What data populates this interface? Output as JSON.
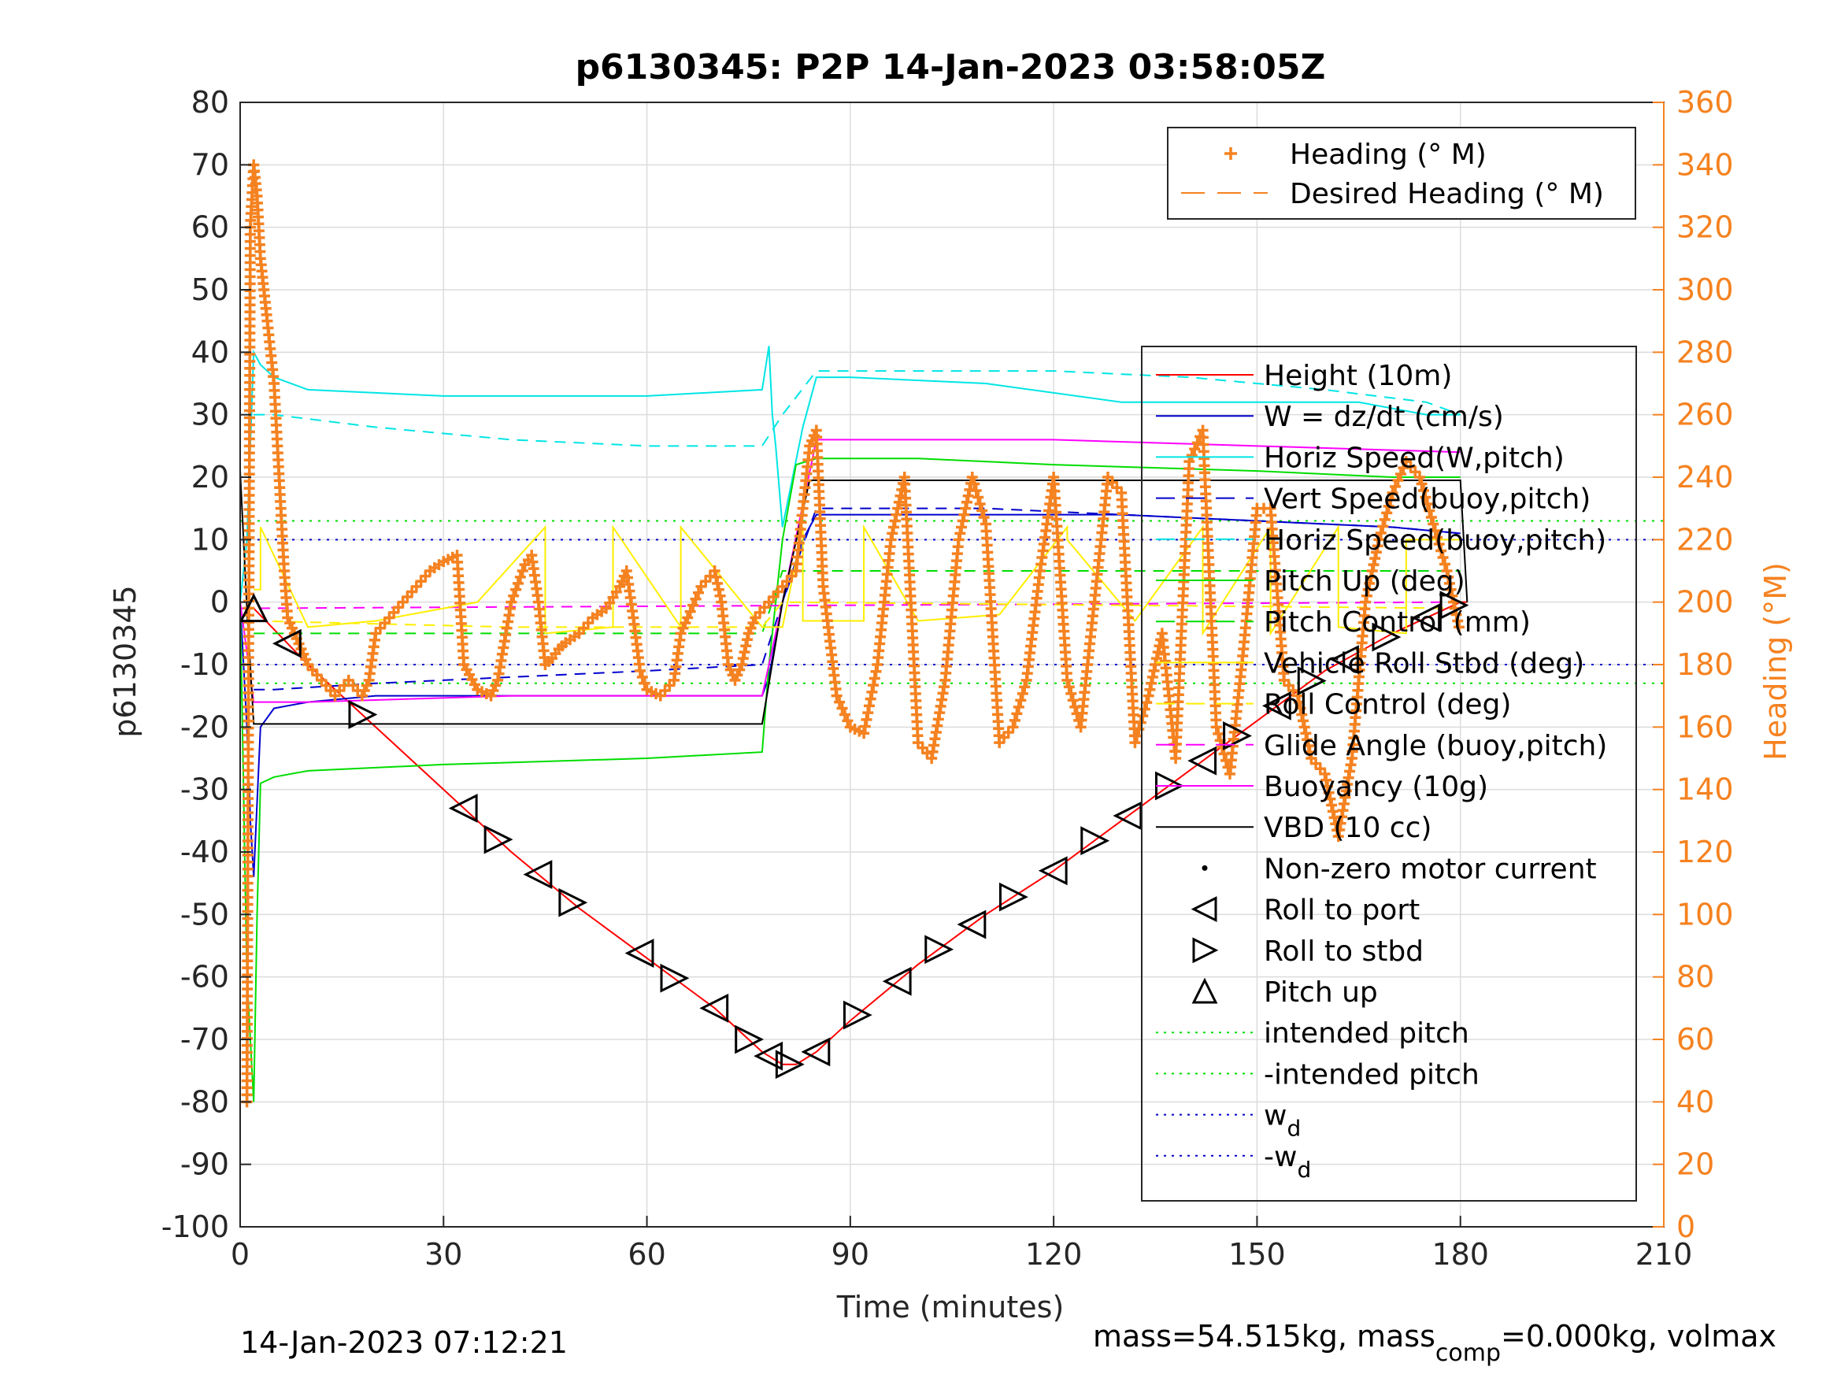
{
  "chart_data": {
    "type": "line",
    "title": "p6130345: P2P 14-Jan-2023 03:58:05Z",
    "xlabel": "Time (minutes)",
    "ylabel": "p6130345",
    "y2label": "Heading (°M)",
    "xlim": [
      0,
      210
    ],
    "ylim": [
      -100,
      80
    ],
    "y2lim": [
      0,
      360
    ],
    "xticks": [
      0,
      30,
      60,
      90,
      120,
      150,
      180,
      210
    ],
    "yticks": [
      -100,
      -90,
      -80,
      -70,
      -60,
      -50,
      -40,
      -30,
      -20,
      -10,
      0,
      10,
      20,
      30,
      40,
      50,
      60,
      70,
      80
    ],
    "y2ticks": [
      0,
      20,
      40,
      60,
      80,
      100,
      120,
      140,
      160,
      180,
      200,
      220,
      240,
      260,
      280,
      300,
      320,
      340,
      360
    ],
    "grid": true,
    "footer_left": "14-Jan-2023 07:12:21",
    "footer_right_main": "mass=54.515kg, mass",
    "footer_right_sub": "comp",
    "footer_right_tail": "=0.000kg, volmax",
    "legend_top": [
      {
        "label": "Heading (° M)",
        "color": "#f58220",
        "marker": "+"
      },
      {
        "label": "Desired Heading (° M)",
        "color": "#f58220",
        "style": "dashed"
      }
    ],
    "legend_main": [
      {
        "label": "Height (10m)",
        "color": "#ff0000",
        "style": "solid"
      },
      {
        "label": "W = dz/dt (cm/s)",
        "color": "#0000cc",
        "style": "solid"
      },
      {
        "label": "Horiz Speed(W,pitch)",
        "color": "#00e5e5",
        "style": "solid"
      },
      {
        "label": "Vert Speed(buoy,pitch)",
        "color": "#0000cc",
        "style": "dashed"
      },
      {
        "label": "Horiz Speed(buoy,pitch)",
        "color": "#00e5e5",
        "style": "dashed"
      },
      {
        "label": "Pitch Up (deg)",
        "color": "#00dd00",
        "style": "solid"
      },
      {
        "label": "Pitch Control (mm)",
        "color": "#00dd00",
        "style": "dashed"
      },
      {
        "label": "Vehicle Roll Stbd (deg)",
        "color": "#ffee00",
        "style": "solid"
      },
      {
        "label": "Roll Control (deg)",
        "color": "#ffee00",
        "style": "dashed"
      },
      {
        "label": "Glide Angle (buoy,pitch)",
        "color": "#ff00ff",
        "style": "dashed"
      },
      {
        "label": "Buoyancy (10g)",
        "color": "#ff00ff",
        "style": "solid"
      },
      {
        "label": "VBD (10 cc)",
        "color": "#000000",
        "style": "solid"
      },
      {
        "label": "Non-zero motor current",
        "color": "#000000",
        "marker": "dot"
      },
      {
        "label": "Roll to port",
        "color": "#000000",
        "marker": "tri-left"
      },
      {
        "label": "Roll to stbd",
        "color": "#000000",
        "marker": "tri-right"
      },
      {
        "label": "Pitch up",
        "color": "#000000",
        "marker": "tri-up"
      },
      {
        "label": "intended pitch",
        "color": "#00dd00",
        "style": "dotted"
      },
      {
        "label": "-intended pitch",
        "color": "#00dd00",
        "style": "dotted"
      },
      {
        "label": "w",
        "sub": "d",
        "color": "#0000cc",
        "style": "dotted"
      },
      {
        "label": "-w",
        "sub": "d",
        "color": "#0000cc",
        "style": "dotted"
      }
    ],
    "series": [
      {
        "name": "Height (10m)",
        "color": "#ff0000",
        "x": [
          0,
          2,
          10,
          20,
          30,
          40,
          50,
          60,
          70,
          77,
          80,
          82,
          85,
          90,
          100,
          110,
          120,
          130,
          140,
          150,
          160,
          170,
          180,
          181
        ],
        "y": [
          -1,
          -1,
          -10,
          -20,
          -30,
          -40,
          -49,
          -57,
          -65,
          -72,
          -74,
          -74,
          -72,
          -67,
          -58,
          -50,
          -43,
          -35,
          -27,
          -19,
          -11,
          -5,
          0,
          0
        ]
      },
      {
        "name": "W = dz/dt (cm/s)",
        "color": "#0000cc",
        "x": [
          0,
          1,
          1.5,
          2,
          3,
          5,
          10,
          20,
          40,
          60,
          77,
          78,
          80,
          83,
          85,
          90,
          110,
          130,
          150,
          170,
          180
        ],
        "y": [
          0,
          -20,
          -35,
          -44,
          -20,
          -17,
          -16,
          -15,
          -15,
          -15,
          -15,
          -12,
          0,
          10,
          14,
          14,
          14,
          14,
          13,
          12,
          11
        ]
      },
      {
        "name": "Horiz Speed(W,pitch)",
        "color": "#00e5e5",
        "x": [
          0,
          1,
          2,
          3,
          5,
          10,
          30,
          60,
          77,
          78,
          78.5,
          79,
          80,
          83,
          85,
          90,
          110,
          130,
          150,
          165,
          175,
          180
        ],
        "y": [
          0,
          10,
          40,
          38,
          36,
          34,
          33,
          33,
          34,
          41,
          30,
          25,
          12,
          28,
          36,
          36,
          35,
          32,
          32,
          32,
          30,
          30
        ]
      },
      {
        "name": "Vert Speed(buoy,pitch)",
        "color": "#0000cc",
        "dash": "14 10",
        "x": [
          2,
          5,
          20,
          40,
          60,
          77,
          80,
          85,
          110,
          130,
          150,
          170,
          180
        ],
        "y": [
          -14,
          -14,
          -13,
          -12,
          -11,
          -10,
          0,
          15,
          15,
          14,
          13,
          12,
          11
        ]
      },
      {
        "name": "Horiz Speed(buoy,pitch)",
        "color": "#00e5e5",
        "dash": "14 10",
        "x": [
          2,
          5,
          20,
          40,
          60,
          77,
          80,
          85,
          100,
          120,
          140,
          160,
          175,
          180
        ],
        "y": [
          30,
          30,
          28,
          26,
          25,
          25,
          30,
          37,
          37,
          37,
          36,
          34,
          32,
          30
        ]
      },
      {
        "name": "Pitch Up (deg)",
        "color": "#00dd00",
        "x": [
          0,
          1,
          2,
          2.5,
          3,
          5,
          10,
          30,
          60,
          77,
          78,
          80,
          82,
          85,
          100,
          120,
          150,
          170,
          180
        ],
        "y": [
          0,
          -60,
          -80,
          -50,
          -29,
          -28,
          -27,
          -26,
          -25,
          -24,
          -10,
          10,
          22,
          23,
          23,
          22,
          21,
          20,
          20
        ]
      },
      {
        "name": "Pitch Control (mm)",
        "color": "#00dd00",
        "dash": "14 10",
        "x": [
          2,
          40,
          77,
          80,
          180
        ],
        "y": [
          -5,
          -5,
          -5,
          5,
          5
        ]
      },
      {
        "name": "Buoyancy (10g)",
        "color": "#ff00ff",
        "x": [
          0,
          2,
          10,
          40,
          77,
          80,
          85,
          120,
          150,
          180
        ],
        "y": [
          0,
          -16,
          -16,
          -15,
          -15,
          0,
          26,
          26,
          25,
          24
        ]
      },
      {
        "name": "Glide Angle (buoy,pitch)",
        "color": "#ff00ff",
        "dash": "14 10",
        "x": [
          0,
          180
        ],
        "y": [
          -1,
          0
        ]
      },
      {
        "name": "VBD (10 cc)",
        "color": "#000000",
        "x": [
          0,
          1,
          2,
          77,
          80,
          84,
          85,
          180,
          181
        ],
        "y": [
          21,
          -1,
          -19.5,
          -19.5,
          0,
          19.5,
          19.5,
          19.5,
          0
        ]
      },
      {
        "name": "Vehicle Roll Stbd (deg)",
        "color": "#ffee00",
        "x": [
          2,
          3,
          3,
          10,
          10,
          20,
          20,
          35,
          35,
          45,
          45,
          55,
          55,
          65,
          65,
          77,
          80,
          83,
          83,
          92,
          92,
          100,
          100,
          112,
          112,
          122,
          122,
          132,
          132,
          142,
          142,
          152,
          152,
          162,
          162,
          172,
          172,
          180
        ],
        "y": [
          2,
          2,
          12,
          -4,
          -4,
          -3,
          -3,
          0,
          0,
          12,
          -5,
          -4,
          12,
          -4,
          12,
          -4,
          -4,
          12,
          -3,
          -3,
          12,
          -3,
          -3,
          -2,
          -2,
          12,
          10,
          -3,
          -3,
          12,
          -5,
          12,
          -5,
          12,
          -4,
          -5,
          10,
          10
        ]
      },
      {
        "name": "Roll Control (deg)",
        "color": "#ffee00",
        "dash": "14 10",
        "x": [
          2,
          40,
          77,
          80,
          180
        ],
        "y": [
          -3,
          -4,
          -4,
          0,
          -1
        ]
      }
    ],
    "reference_lines": [
      {
        "name": "intended pitch",
        "color": "#00dd00",
        "y": 13
      },
      {
        "name": "-intended pitch",
        "color": "#00dd00",
        "y": -13
      },
      {
        "name": "w_d",
        "color": "#0000cc",
        "y": 10
      },
      {
        "name": "-w_d",
        "color": "#0000cc",
        "y": -10
      }
    ],
    "heading": {
      "name": "Heading (° M)",
      "color": "#f58220",
      "x": [
        1,
        1.5,
        2,
        2.5,
        3,
        3.5,
        4,
        5,
        5.5,
        6,
        6.5,
        7,
        8,
        9,
        10,
        12,
        14,
        16,
        18,
        19,
        20,
        22,
        24,
        26,
        28,
        30,
        32,
        33,
        35,
        37,
        38,
        40,
        42,
        43,
        44,
        45,
        46,
        47,
        48,
        50,
        52,
        54,
        56,
        57,
        58,
        59,
        60,
        62,
        64,
        65,
        66,
        68,
        70,
        71,
        72,
        73,
        74,
        75,
        76,
        78,
        80,
        82,
        84,
        85,
        86,
        88,
        90,
        92,
        94,
        96,
        98,
        100,
        102,
        104,
        106,
        108,
        110,
        112,
        114,
        116,
        118,
        120,
        122,
        124,
        126,
        128,
        130,
        132,
        134,
        136,
        138,
        140,
        142,
        144,
        146,
        148,
        150,
        152,
        154,
        156,
        158,
        160,
        162,
        164,
        166,
        168,
        170,
        172,
        174,
        176,
        178,
        180
      ],
      "y": [
        40,
        320,
        340,
        330,
        310,
        300,
        290,
        270,
        250,
        230,
        210,
        195,
        190,
        185,
        180,
        175,
        170,
        175,
        170,
        175,
        190,
        195,
        200,
        205,
        210,
        213,
        215,
        180,
        172,
        170,
        175,
        200,
        212,
        215,
        200,
        180,
        182,
        185,
        187,
        190,
        195,
        198,
        205,
        210,
        195,
        178,
        172,
        170,
        175,
        190,
        195,
        205,
        210,
        200,
        180,
        175,
        180,
        190,
        195,
        200,
        205,
        210,
        250,
        255,
        205,
        170,
        160,
        158,
        180,
        220,
        240,
        155,
        150,
        175,
        220,
        240,
        225,
        155,
        160,
        175,
        210,
        240,
        175,
        160,
        200,
        240,
        235,
        155,
        170,
        190,
        150,
        245,
        255,
        160,
        145,
        185,
        230,
        230,
        175,
        170,
        150,
        145,
        125,
        150,
        200,
        220,
        235,
        245,
        240,
        225,
        210,
        190
      ]
    }
  }
}
